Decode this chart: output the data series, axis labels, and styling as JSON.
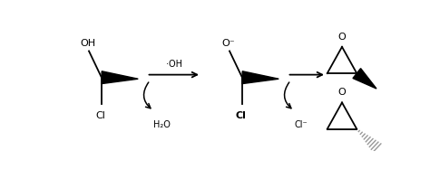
{
  "bg_color": "#ffffff",
  "fig_width": 4.74,
  "fig_height": 1.88,
  "dpi": 100,
  "arrow1_label": "·OH",
  "arrow1_sub": "H₂O",
  "arrow2_sub": "Cl⁻",
  "font_size": 7,
  "line_color": "#000000",
  "gray_color": "#999999",
  "mol1_oh": "OH",
  "mol1_cl": "Cl",
  "mol2_o": "O⁻",
  "mol2_cl": "Cl",
  "ep1_o": "O",
  "ep2_o": "O"
}
